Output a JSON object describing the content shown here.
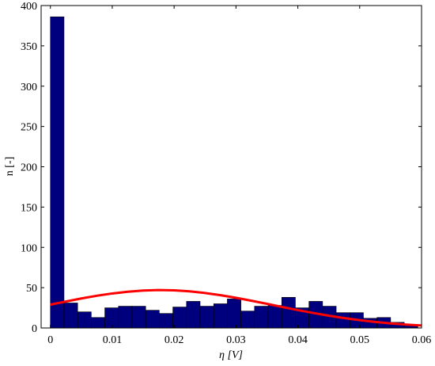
{
  "chart_data": {
    "type": "histogram",
    "xlabel": "η [V]",
    "ylabel": "n [-]",
    "bins": [
      0,
      0.0022,
      0.0044,
      0.0066,
      0.0088,
      0.011,
      0.0132,
      0.0154,
      0.0176,
      0.0198,
      0.022,
      0.0242,
      0.0264,
      0.0286,
      0.0308,
      0.033,
      0.0352,
      0.0374,
      0.0396,
      0.0418,
      0.044,
      0.0462,
      0.0484,
      0.0506,
      0.0528,
      0.055,
      0.0572,
      0.0594
    ],
    "values": [
      386,
      31,
      20,
      13,
      25,
      27,
      27,
      22,
      18,
      26,
      33,
      27,
      30,
      36,
      21,
      27,
      28,
      38,
      25,
      33,
      27,
      19,
      19,
      12,
      13,
      7,
      3
    ],
    "color": "#00007f",
    "curve": {
      "type": "line",
      "color": "#ff0000",
      "x": [
        0,
        0.0025,
        0.005,
        0.0075,
        0.01,
        0.0125,
        0.015,
        0.0175,
        0.02,
        0.0225,
        0.025,
        0.0275,
        0.03,
        0.0325,
        0.035,
        0.0375,
        0.04,
        0.0425,
        0.045,
        0.0475,
        0.05,
        0.0525,
        0.055,
        0.0575,
        0.06
      ],
      "values": [
        29.0,
        32.8,
        36.6,
        40.0,
        42.8,
        45.0,
        46.4,
        47.0,
        46.7,
        45.4,
        43.4,
        40.7,
        37.5,
        33.8,
        30.0,
        26.0,
        22.2,
        18.6,
        15.2,
        12.3,
        9.7,
        7.5,
        5.7,
        4.2,
        3.1
      ]
    },
    "xlim": [
      -0.0015,
      0.06
    ],
    "ylim": [
      0,
      400
    ],
    "xticks": [
      0,
      0.01,
      0.02,
      0.03,
      0.04,
      0.05,
      0.06
    ],
    "yticks": [
      0,
      50,
      100,
      150,
      200,
      250,
      300,
      350,
      400
    ]
  }
}
